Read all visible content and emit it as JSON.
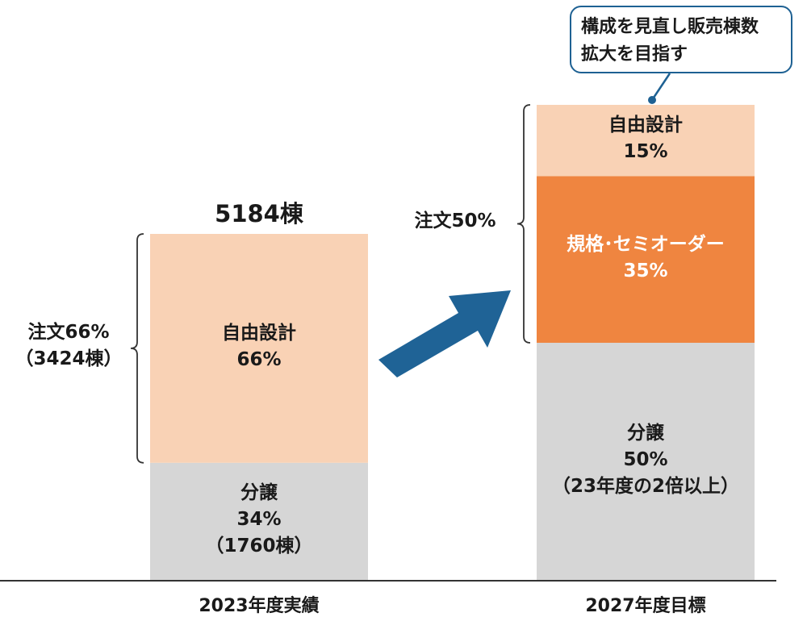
{
  "chart_data": {
    "type": "bar",
    "stacked": true,
    "categories": [
      "2023年度実績",
      "2027年度目標"
    ],
    "ylim": [
      0,
      100
    ],
    "unit": "%",
    "totals": [
      "5184棟",
      ""
    ],
    "series": [
      {
        "name": "分譲",
        "values": [
          34,
          50
        ],
        "color": "#d6d6d6",
        "labels": [
          [
            "分譲",
            "34%",
            "（1760棟）"
          ],
          [
            "分譲",
            "50%",
            "（23年度の2倍以上）"
          ]
        ],
        "text_light": false
      },
      {
        "name": "規格・セミオーダー",
        "values": [
          0,
          35
        ],
        "color": "#ef8540",
        "labels": [
          [],
          [
            "規格･セミオーダー",
            "35%"
          ]
        ],
        "text_light": true
      },
      {
        "name": "自由設計",
        "values": [
          66,
          15
        ],
        "color": "#f9d2b5",
        "labels": [
          [
            "自由設計",
            "66%"
          ],
          [
            "自由設計",
            "15%"
          ]
        ],
        "text_light": false
      }
    ],
    "brackets": [
      {
        "bar": 0,
        "from_series": 2,
        "to_series": 2,
        "lines": [
          "注文66%",
          "（3424棟）"
        ]
      },
      {
        "bar": 1,
        "from_series": 1,
        "to_series": 2,
        "lines": [
          "注文50%"
        ]
      }
    ],
    "callout": {
      "bar": 1,
      "lines": [
        "構成を見直し販売棟数",
        "拡大を目指す"
      ],
      "border_color": "#1e6193"
    },
    "arrow_color": "#1f6396"
  }
}
